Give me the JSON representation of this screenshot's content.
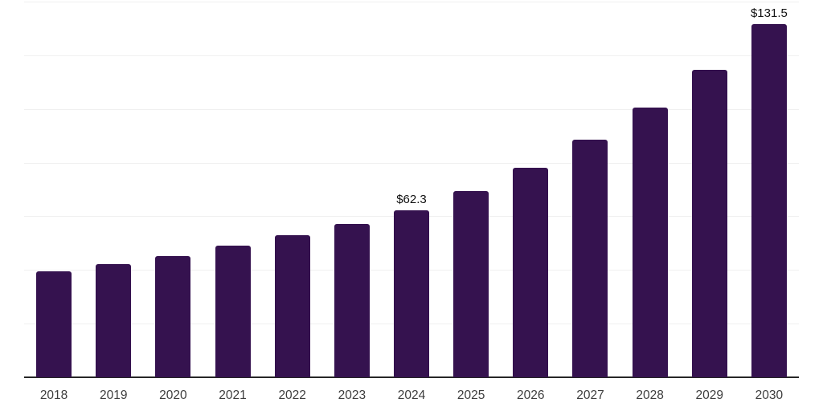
{
  "chart_data": {
    "type": "bar",
    "title": "",
    "xlabel": "",
    "ylabel": "",
    "categories": [
      "2018",
      "2019",
      "2020",
      "2021",
      "2022",
      "2023",
      "2024",
      "2025",
      "2026",
      "2027",
      "2028",
      "2029",
      "2030"
    ],
    "values": [
      39.5,
      42.3,
      45.2,
      49.1,
      53.0,
      57.1,
      62.3,
      69.5,
      78.2,
      88.6,
      100.4,
      114.6,
      131.5
    ],
    "data_labels": {
      "2024": "$62.3",
      "2030": "$131.5"
    },
    "ylim": [
      0,
      140
    ],
    "grid_step": 20,
    "grid": "horizontal",
    "legend": "none",
    "colors": {
      "bar": "#35124F",
      "gridline": "#F0F0F0",
      "axis_line": "#262626",
      "tick_label": "#3D3D3D",
      "data_label": "#111111",
      "background": "#FFFFFF"
    }
  }
}
